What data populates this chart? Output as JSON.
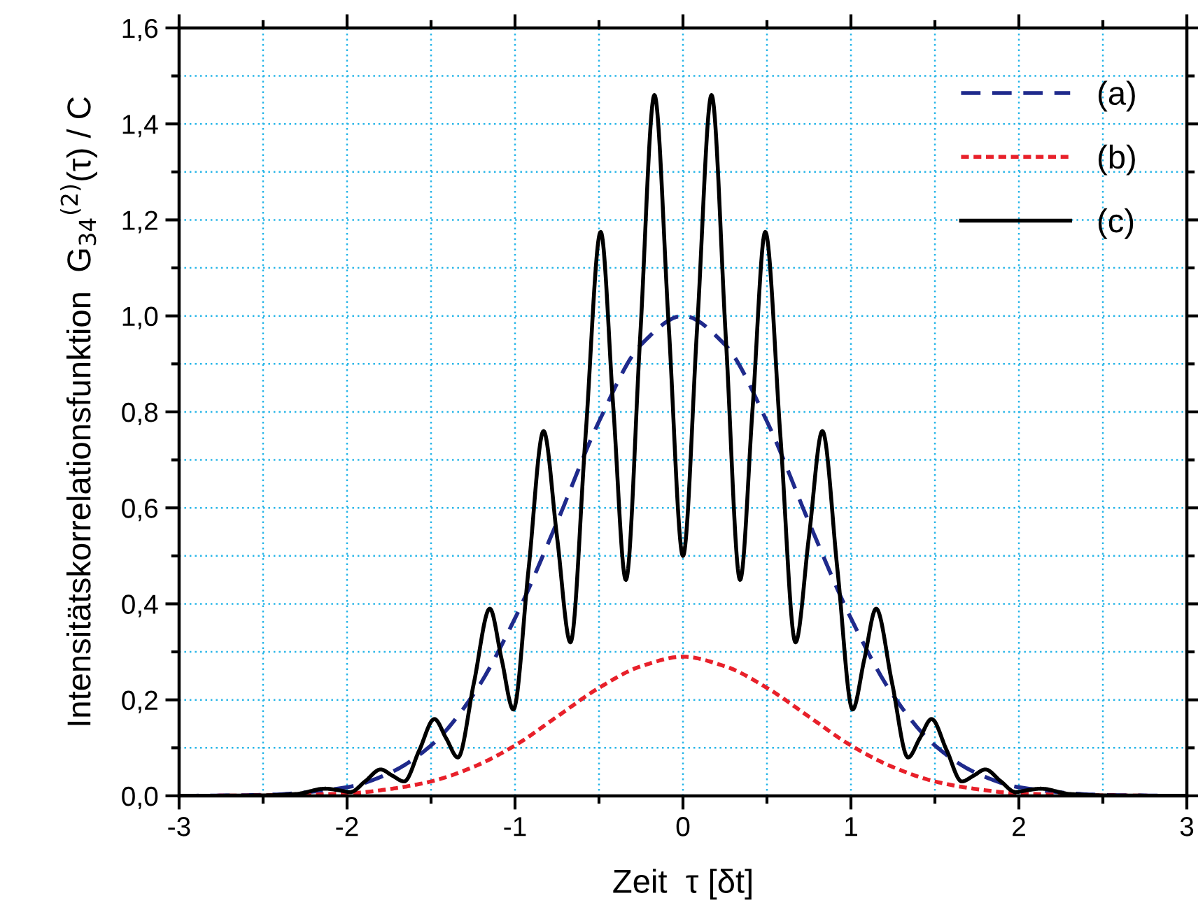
{
  "chart_data": {
    "type": "line",
    "xlabel": "Zeit  τ [δt]",
    "ylabel": "Intensitätskorrelationsfunktion  G$_{34}$$^{(2)}$(τ) / C",
    "xlim": [
      -3,
      3
    ],
    "ylim": [
      0,
      1.6
    ],
    "xticks": [
      -3,
      -2,
      -1,
      0,
      1,
      2,
      3
    ],
    "yticks": [
      {
        "value": 0,
        "label": "0,0"
      },
      {
        "value": 0.2,
        "label": "0,2"
      },
      {
        "value": 0.4,
        "label": "0,4"
      },
      {
        "value": 0.6,
        "label": "0,6"
      },
      {
        "value": 0.8,
        "label": "0,8"
      },
      {
        "value": 1.0,
        "label": "1,0"
      },
      {
        "value": 1.2,
        "label": "1,2"
      },
      {
        "value": 1.4,
        "label": "1,4"
      },
      {
        "value": 1.6,
        "label": "1,6"
      }
    ],
    "grid": true,
    "legend": "top right",
    "marker": "none",
    "series": [
      {
        "name": "(a)",
        "color": "#1f2a8c",
        "line_style": "dashed",
        "x": [
          -3,
          -2.5,
          -2,
          -1.75,
          -1.5,
          -1.25,
          -1,
          -0.75,
          -0.5,
          -0.25,
          0,
          0.25,
          0.5,
          0.75,
          1,
          1.25,
          1.5,
          1.75,
          2,
          2.5,
          3
        ],
        "values": [
          0,
          0.002,
          0.018,
          0.047,
          0.105,
          0.21,
          0.37,
          0.57,
          0.78,
          0.94,
          1.0,
          0.94,
          0.78,
          0.57,
          0.37,
          0.21,
          0.105,
          0.047,
          0.018,
          0.002,
          0
        ]
      },
      {
        "name": "(b)",
        "color": "#e8202a",
        "line_style": "dotted",
        "x": [
          -3,
          -2.5,
          -2,
          -1.75,
          -1.5,
          -1.25,
          -1,
          -0.75,
          -0.5,
          -0.25,
          0,
          0.25,
          0.5,
          0.75,
          1,
          1.25,
          1.5,
          1.75,
          2,
          2.5,
          3
        ],
        "values": [
          0,
          0.001,
          0.005,
          0.014,
          0.03,
          0.06,
          0.105,
          0.165,
          0.225,
          0.27,
          0.29,
          0.27,
          0.225,
          0.165,
          0.105,
          0.06,
          0.03,
          0.014,
          0.005,
          0.001,
          0
        ]
      },
      {
        "name": "(c)",
        "color": "#000000",
        "line_style": "solid",
        "x": [
          -3,
          -2.5,
          -2.3,
          -2.13,
          -2.055,
          -1.98,
          -1.89,
          -1.8,
          -1.73,
          -1.66,
          -1.57,
          -1.48,
          -1.41,
          -1.34,
          -1.245,
          -1.15,
          -1.08,
          -1.01,
          -0.92,
          -0.83,
          -0.75,
          -0.67,
          -0.58,
          -0.49,
          -0.415,
          -0.34,
          -0.255,
          -0.17,
          -0.085,
          0,
          0.085,
          0.17,
          0.255,
          0.34,
          0.415,
          0.49,
          0.58,
          0.67,
          0.75,
          0.83,
          0.92,
          1.01,
          1.08,
          1.15,
          1.245,
          1.34,
          1.41,
          1.48,
          1.57,
          1.66,
          1.73,
          1.8,
          1.89,
          1.98,
          2.055,
          2.13,
          2.3,
          2.5,
          3
        ],
        "values": [
          0,
          0.001,
          0.004,
          0.015,
          0.012,
          0.008,
          0.031,
          0.055,
          0.042,
          0.03,
          0.095,
          0.16,
          0.12,
          0.08,
          0.235,
          0.39,
          0.285,
          0.18,
          0.47,
          0.76,
          0.54,
          0.32,
          0.75,
          1.175,
          0.81,
          0.45,
          0.955,
          1.46,
          0.98,
          0.5,
          0.98,
          1.46,
          0.955,
          0.45,
          0.81,
          1.175,
          0.75,
          0.32,
          0.54,
          0.76,
          0.47,
          0.18,
          0.285,
          0.39,
          0.235,
          0.08,
          0.12,
          0.16,
          0.095,
          0.03,
          0.042,
          0.055,
          0.031,
          0.008,
          0.012,
          0.015,
          0.004,
          0.001,
          0
        ]
      }
    ]
  }
}
